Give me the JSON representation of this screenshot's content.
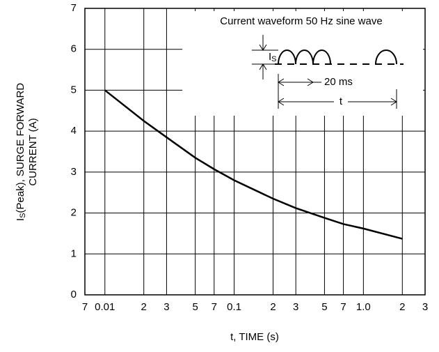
{
  "chart_data": {
    "type": "line",
    "xlabel": "t, TIME (s)",
    "ylabel": {
      "symbol": "I",
      "subscript": "S",
      "text": "(Peak), SURGE FORWARD",
      "line2": "CURRENT (A)"
    },
    "inset": {
      "title": "Current waveform 50 Hz sine wave",
      "symbol": "I",
      "subscript": "S",
      "period": "20 ms",
      "duration": "t"
    },
    "xscale": "log",
    "grid": true,
    "xlim": [
      0.007,
      3
    ],
    "ylim": [
      0,
      7
    ],
    "xticks": [
      {
        "value": 0.007,
        "label": "7"
      },
      0.01,
      {
        "value": 0.02,
        "label": "2"
      },
      {
        "value": 0.03,
        "label": "3"
      },
      {
        "value": 0.05,
        "label": "5"
      },
      {
        "value": 0.07,
        "label": "7"
      },
      0.1,
      {
        "value": 0.2,
        "label": "2"
      },
      {
        "value": 0.3,
        "label": "3"
      },
      {
        "value": 0.5,
        "label": "5"
      },
      {
        "value": 0.7,
        "label": "7"
      },
      {
        "value": 1,
        "label": "1.0"
      },
      {
        "value": 2,
        "label": "2"
      },
      {
        "value": 3,
        "label": "3"
      }
    ],
    "yticks": [
      0,
      1,
      2,
      3,
      4,
      5,
      6,
      7
    ],
    "series": [
      {
        "color": "#000000",
        "x": [
          0.01,
          0.02,
          0.03,
          0.05,
          0.07,
          0.1,
          0.2,
          0.3,
          0.5,
          0.7,
          1,
          2
        ],
        "values": [
          5,
          4.25,
          3.85,
          3.35,
          3.07,
          2.8,
          2.35,
          2.12,
          1.88,
          1.73,
          1.62,
          1.37
        ]
      }
    ]
  }
}
